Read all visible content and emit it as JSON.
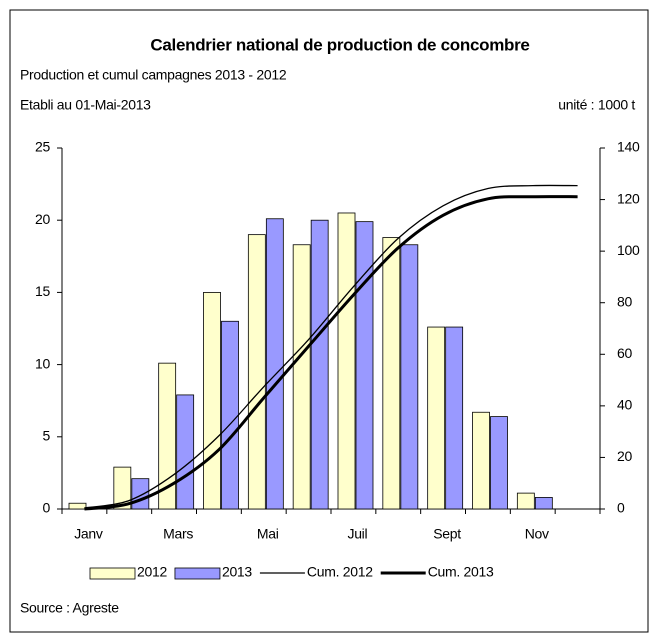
{
  "chart_data": {
    "type": "bar",
    "title": "Calendrier national de production de concombre",
    "subtitle": "Production et cumul campagnes 2013 - 2012",
    "note_left": "Etabli au 01-Mai-2013",
    "note_right": "unité : 1000 t",
    "source": "Source : Agreste",
    "categories": [
      "Janv",
      null,
      "Mars",
      null,
      "Mai",
      null,
      "Juil",
      null,
      "Sept",
      null,
      "Nov",
      null
    ],
    "series": [
      {
        "name": "2012",
        "color": "#ffffcc",
        "values": [
          0.4,
          2.9,
          10.1,
          15.0,
          19.0,
          18.3,
          20.5,
          18.8,
          12.6,
          6.7,
          1.1,
          0
        ]
      },
      {
        "name": "2013",
        "color": "#9999ff",
        "values": [
          0,
          2.1,
          7.9,
          13.0,
          20.1,
          20.0,
          19.9,
          18.3,
          12.6,
          6.4,
          0.8,
          0
        ]
      },
      {
        "name": "Cum. 2012",
        "type": "line",
        "axis": "y2",
        "color": "#000000",
        "values": [
          0.4,
          3.3,
          13.4,
          28.4,
          47.4,
          65.7,
          86.2,
          105.0,
          117.6,
          124.3,
          125.4,
          125.4
        ]
      },
      {
        "name": "Cum. 2013",
        "type": "line",
        "axis": "y2",
        "color": "#000000",
        "values": [
          0,
          2.1,
          10.0,
          23.0,
          43.1,
          63.1,
          83.0,
          101.3,
          113.9,
          120.3,
          121.1,
          121.1
        ]
      }
    ],
    "ylim": [
      0,
      25
    ],
    "yticks": [
      0,
      5,
      10,
      15,
      20,
      25
    ],
    "y2lim": [
      0,
      140
    ],
    "y2ticks": [
      0,
      20,
      40,
      60,
      80,
      100,
      120,
      140
    ],
    "grid": false,
    "legend": "bottom"
  }
}
